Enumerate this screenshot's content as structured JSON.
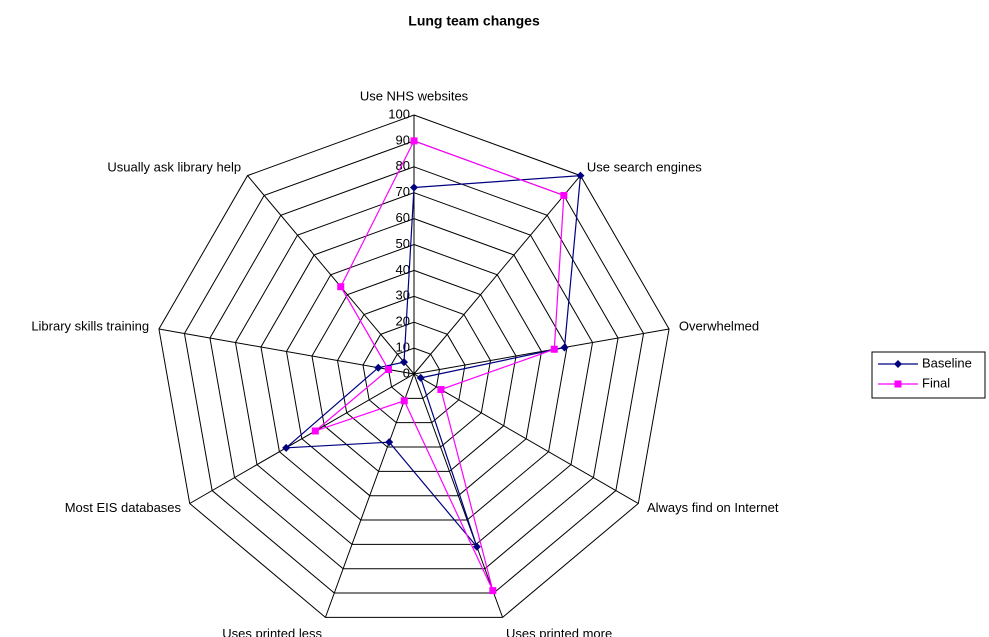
{
  "chart_data": {
    "type": "radar",
    "title": "Lung team changes",
    "categories": [
      "Use NHS websites",
      "Use search engines",
      "Overwhelmed",
      "Always find on Internet",
      "Uses printed more",
      "Uses printed less",
      "Most EIS databases",
      "Library skills training",
      "Usually ask library help"
    ],
    "series": [
      {
        "name": "Baseline",
        "color": "#000080",
        "values": [
          72,
          100,
          59,
          3,
          71,
          28,
          57,
          14,
          6
        ]
      },
      {
        "name": "Final",
        "color": "#ff00ff",
        "values": [
          90,
          90,
          55,
          12,
          89,
          11,
          44,
          10,
          44
        ]
      }
    ],
    "ylim": [
      0,
      100
    ],
    "yticks": [
      0,
      10,
      20,
      30,
      40,
      50,
      60,
      70,
      80,
      90,
      100
    ],
    "grid": true,
    "legend": "right"
  }
}
